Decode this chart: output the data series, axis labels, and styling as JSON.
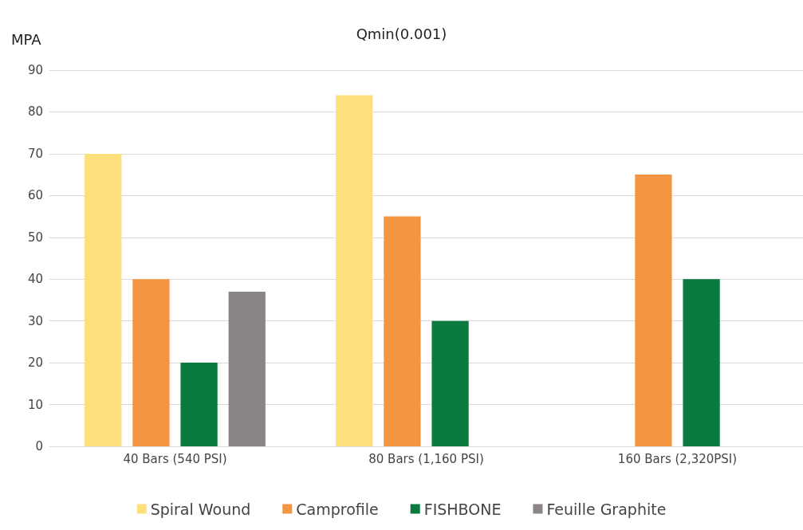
{
  "chart_data": {
    "type": "bar",
    "title": "Qmin(0.001)",
    "ylabel": "MPA",
    "categories": [
      "40 Bars (540 PSI)",
      "80 Bars (1,160 PSI)",
      "160 Bars (2,320PSI)"
    ],
    "series": [
      {
        "name": "Spiral Wound",
        "color": "#fde07c",
        "values": [
          70,
          84,
          null
        ]
      },
      {
        "name": "Camprofile",
        "color": "#f39541",
        "values": [
          40,
          55,
          65
        ]
      },
      {
        "name": "FISHBONE",
        "color": "#0a7a3e",
        "values": [
          20,
          30,
          40
        ]
      },
      {
        "name": "Feuille Graphite",
        "color": "#8b8685",
        "values": [
          37,
          null,
          null
        ]
      }
    ],
    "ylim": [
      0,
      90
    ],
    "yticks": [
      0,
      10,
      20,
      30,
      40,
      50,
      60,
      70,
      80,
      90
    ],
    "grid": "y",
    "legend": "bottom"
  }
}
